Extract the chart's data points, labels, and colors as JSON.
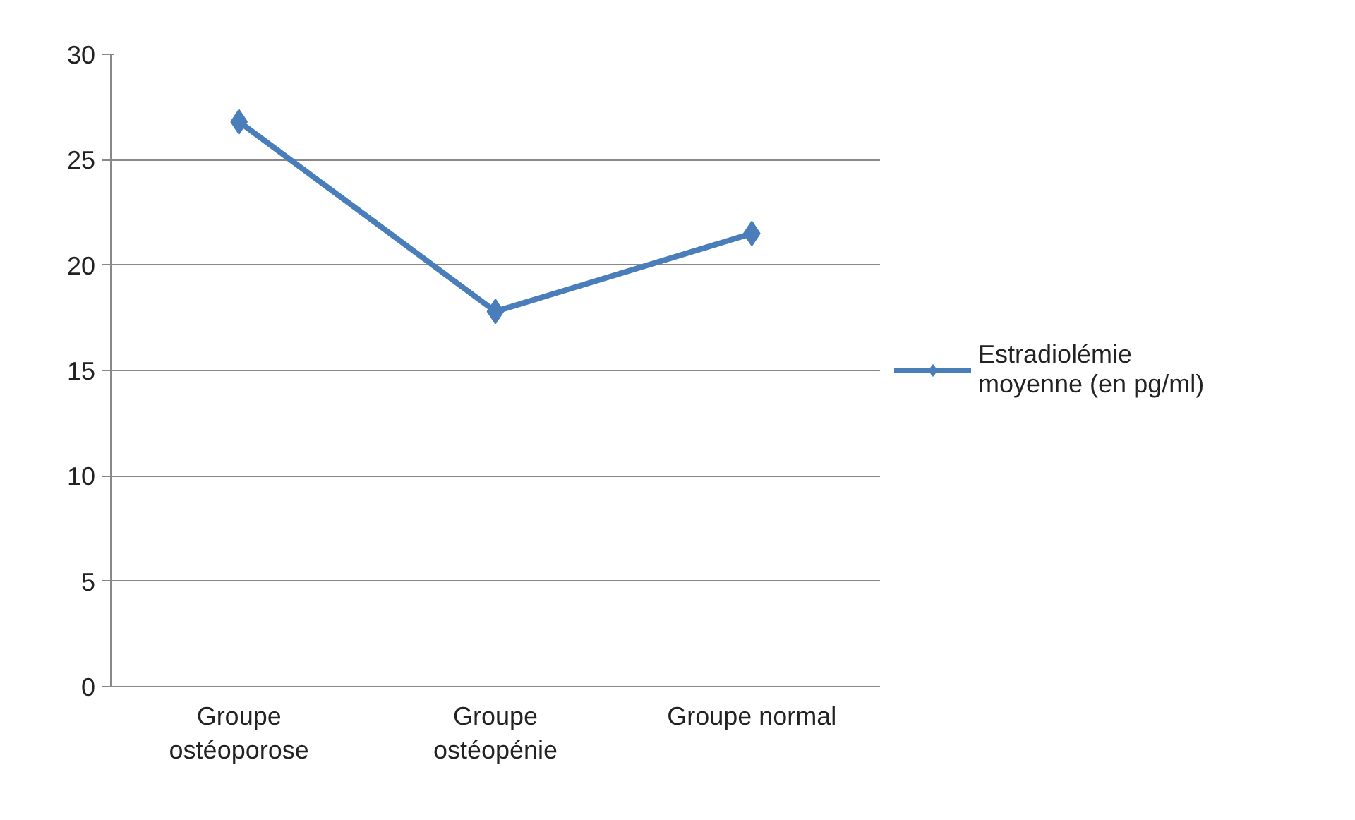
{
  "chart_data": {
    "type": "line",
    "categories": [
      "Groupe\nostéoporose",
      "Groupe\nostéopénie",
      "Groupe normal"
    ],
    "series": [
      {
        "name": "Estradiolémie\nmoyenne (en pg/ml)",
        "color": "#4a7ebb",
        "values": [
          26.8,
          17.8,
          21.5
        ]
      }
    ],
    "ylim": [
      0,
      30
    ],
    "yticks": [
      0,
      5,
      10,
      15,
      20,
      25,
      30
    ],
    "grid": "y",
    "legend": "right",
    "marker": "diamond",
    "line_style": "solid"
  }
}
